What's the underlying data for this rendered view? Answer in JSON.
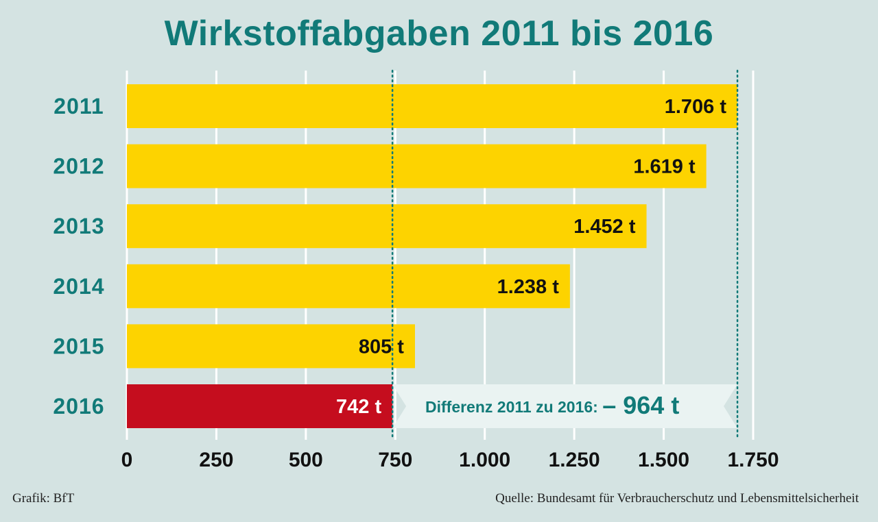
{
  "chart_data": {
    "type": "bar",
    "orientation": "horizontal",
    "title": "Wirkstoffabgaben 2011 bis 2016",
    "categories": [
      "2011",
      "2012",
      "2013",
      "2014",
      "2015",
      "2016"
    ],
    "values": [
      1706,
      1619,
      1452,
      1238,
      805,
      742
    ],
    "value_labels": [
      "1.706 t",
      "1.619 t",
      "1.452 t",
      "1.238 t",
      "805 t",
      "742 t"
    ],
    "xlim": [
      0,
      1750
    ],
    "x_ticks": [
      0,
      250,
      500,
      750,
      1000,
      1250,
      1500,
      1750
    ],
    "x_tick_labels": [
      "0",
      "250",
      "500",
      "750",
      "1.000",
      "1.250",
      "1.500",
      "1.750"
    ],
    "grid": "vertical",
    "highlight_category": "2016",
    "colors": {
      "bar": "#fdd300",
      "highlight_bar": "#c50d1e",
      "accent": "#117a78",
      "background": "#d4e3e2",
      "band": "#eaf3f2"
    },
    "reference_lines": [
      742,
      1706
    ],
    "annotation": {
      "label": "Differenz 2011 zu 2016:",
      "value": "– 964 t"
    }
  },
  "footer": {
    "left": "Grafik: BfT",
    "right": "Quelle: Bundesamt für Verbraucherschutz und Lebensmittelsicherheit"
  }
}
